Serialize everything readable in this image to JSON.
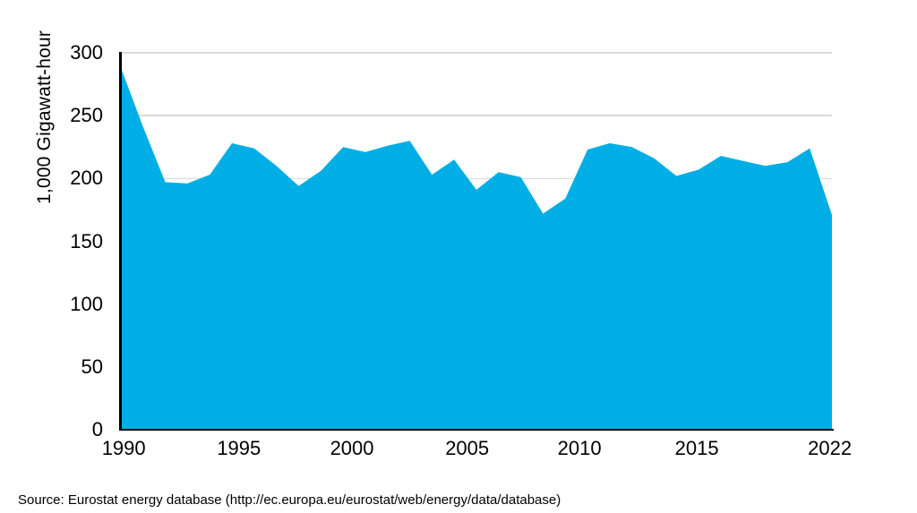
{
  "figure": {
    "source_note": "Source: Eurostat energy database (http://ec.europa.eu/eurostat/web/energy/data/database)"
  },
  "chart_data": {
    "type": "area",
    "title": "",
    "xlabel": "",
    "ylabel": "1,000 Gigawatt-hour",
    "x": [
      1990,
      1991,
      1992,
      1993,
      1994,
      1995,
      1996,
      1997,
      1998,
      1999,
      2000,
      2001,
      2002,
      2003,
      2004,
      2005,
      2006,
      2007,
      2008,
      2009,
      2010,
      2011,
      2012,
      2013,
      2014,
      2015,
      2016,
      2017,
      2018,
      2019,
      2020,
      2021,
      2022
    ],
    "values": [
      288,
      241,
      197,
      196,
      203,
      228,
      224,
      210,
      194,
      206,
      225,
      221,
      226,
      230,
      203,
      215,
      191,
      205,
      201,
      172,
      184,
      223,
      228,
      225,
      216,
      202,
      207,
      218,
      214,
      210,
      213,
      224,
      171
    ],
    "ylim": [
      0,
      300
    ],
    "yticks": [
      0,
      50,
      100,
      150,
      200,
      250,
      300
    ],
    "xticks": [
      {
        "label": "1990",
        "pos_pct": 0.4
      },
      {
        "label": "1995",
        "pos_pct": 16.6
      },
      {
        "label": "2000",
        "pos_pct": 32.5
      },
      {
        "label": "2005",
        "pos_pct": 48.7
      },
      {
        "label": "2010",
        "pos_pct": 64.5
      },
      {
        "label": "2015",
        "pos_pct": 81.0
      },
      {
        "label": "2022",
        "pos_pct": 99.7
      }
    ],
    "grid": "horizontal",
    "legend": "none",
    "colors": {
      "area_fill": "#00AEE6",
      "gridline": "#D9D9D9",
      "axis": "#000000",
      "text": "#000000",
      "background": "#FFFFFF"
    }
  }
}
